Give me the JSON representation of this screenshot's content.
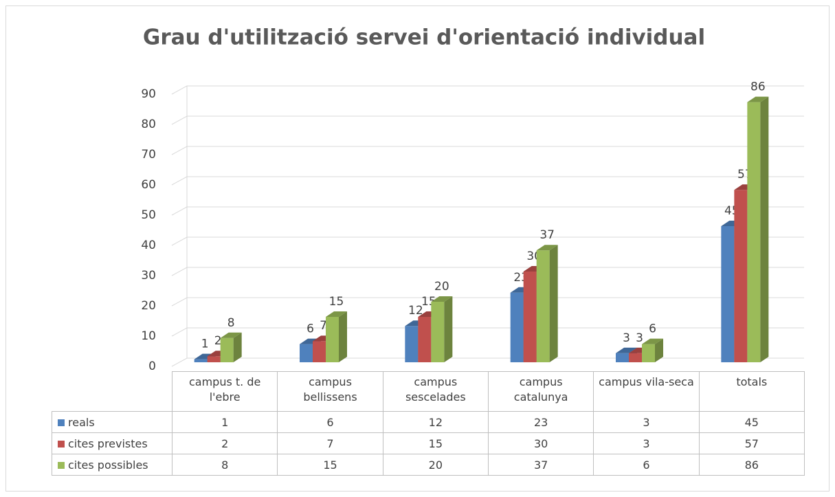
{
  "chart_data": {
    "type": "bar3d",
    "title": "Grau d'utilització servei d'orientació individual",
    "categories": [
      "campus t. de l'ebre",
      "campus bellissens",
      "campus sescelades",
      "campus catalunya",
      "campus vila-seca",
      "totals"
    ],
    "series": [
      {
        "name": "reals",
        "color": "#4f81bd",
        "values": [
          1,
          6,
          12,
          23,
          3,
          45
        ]
      },
      {
        "name": "cites previstes",
        "color": "#c0504d",
        "values": [
          2,
          7,
          15,
          30,
          3,
          57
        ]
      },
      {
        "name": "cites possibles",
        "color": "#9bbb59",
        "values": [
          8,
          15,
          20,
          37,
          6,
          86
        ]
      }
    ],
    "ylim": [
      0,
      90
    ],
    "yticks": [
      0,
      10,
      20,
      30,
      40,
      50,
      60,
      70,
      80,
      90
    ],
    "grid": true
  }
}
